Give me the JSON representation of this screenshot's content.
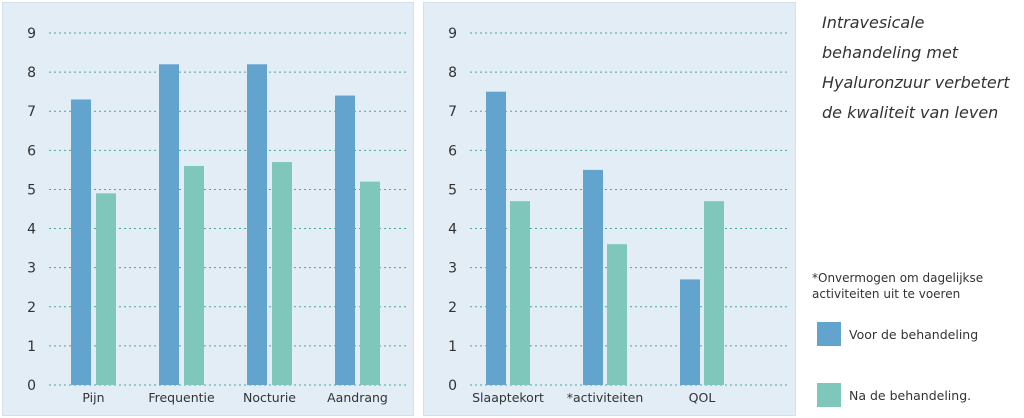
{
  "title": "Intravesicale behandeling met Hyaluronzuur verbetert de kwaliteit van leven",
  "footnote": "*Onvermogen om dagelijkse activiteiten uit te voeren",
  "colors": {
    "before": "#63a4cf",
    "after": "#7fc6bb",
    "panel_bg": "#e3edf5",
    "grid": "#4aa89c"
  },
  "legend": [
    {
      "label": "Voor de behandeling",
      "color": "#63a4cf"
    },
    {
      "label": "Na de behandeling.",
      "color": "#7fc6bb"
    }
  ],
  "chart_data": [
    {
      "type": "bar",
      "categories": [
        "Pijn",
        "Frequentie",
        "Nocturie",
        "Aandrang"
      ],
      "ylim": [
        0,
        9
      ],
      "yticks": [
        0,
        1,
        2,
        3,
        4,
        5,
        6,
        7,
        8,
        9
      ],
      "grid": true,
      "series": [
        {
          "name": "Voor de behandeling",
          "values": [
            7.3,
            8.2,
            8.2,
            7.4
          ]
        },
        {
          "name": "Na de behandeling.",
          "values": [
            4.9,
            5.6,
            5.7,
            5.2
          ]
        }
      ]
    },
    {
      "type": "bar",
      "categories": [
        "Slaaptekort",
        "*activiteiten",
        "QOL"
      ],
      "ylim": [
        0,
        9
      ],
      "yticks": [
        0,
        1,
        2,
        3,
        4,
        5,
        6,
        7,
        8,
        9
      ],
      "grid": true,
      "series": [
        {
          "name": "Voor de behandeling",
          "values": [
            7.5,
            5.5,
            2.7
          ]
        },
        {
          "name": "Na de behandeling.",
          "values": [
            4.7,
            3.6,
            4.7
          ]
        }
      ]
    }
  ]
}
